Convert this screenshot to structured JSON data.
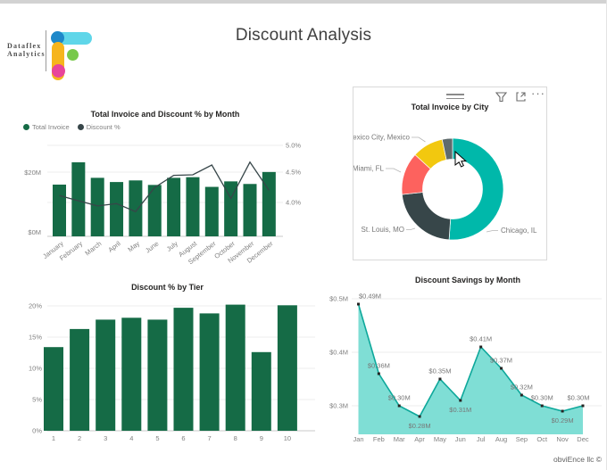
{
  "page": {
    "title": "Discount Analysis",
    "attribution": "obviEnce llc ©"
  },
  "logo": {
    "line1": "Dataflex",
    "line2": "Analytics",
    "colors": {
      "blue": "#1E88C9",
      "cyan": "#5FD6E9",
      "yellow": "#F6B51D",
      "green": "#78C94B",
      "pink": "#E8459B"
    }
  },
  "visual_header": {
    "icons": [
      "drag-handle",
      "filter",
      "focus-mode",
      "more-options"
    ],
    "more_glyph": "···"
  },
  "colors": {
    "green": "#156B46",
    "dark": "#374649",
    "area_fill": "#7FDED5",
    "area_line": "#0EA89B",
    "marker": "#252423",
    "axis_text": "#808080",
    "grid": "#ececec",
    "axis_line": "#c9c9c9",
    "label_text": "#777777"
  },
  "chart_data": [
    {
      "id": "invoice-discount-by-month",
      "type": "bar+line",
      "title": "Total Invoice and Discount % by Month",
      "legend": [
        {
          "label": "Total Invoice",
          "color": "#156B46"
        },
        {
          "label": "Discount %",
          "color": "#374649"
        }
      ],
      "categories": [
        "January",
        "February",
        "March",
        "April",
        "May",
        "June",
        "July",
        "August",
        "September",
        "October",
        "November",
        "December"
      ],
      "series": [
        {
          "name": "Total Invoice",
          "type": "bar",
          "unit": "$M",
          "values": [
            16.0,
            22.9,
            18.1,
            16.8,
            17.3,
            15.9,
            18.1,
            18.3,
            15.3,
            17.0,
            16.2,
            19.9
          ]
        },
        {
          "name": "Discount %",
          "type": "line",
          "unit": "%",
          "values": [
            4.12,
            4.03,
            3.94,
            3.98,
            3.84,
            4.26,
            4.47,
            4.48,
            4.65,
            4.07,
            4.7,
            4.21
          ]
        }
      ],
      "y_left": {
        "ticks": [
          "$0M",
          "$20M"
        ],
        "range": [
          0,
          20
        ]
      },
      "y_right": {
        "ticks": [
          "4.0%",
          "4.5%",
          "5.0%"
        ],
        "range": [
          4.0,
          5.0
        ]
      },
      "grid": true
    },
    {
      "id": "invoice-by-city",
      "type": "donut",
      "title": "Total Invoice by City",
      "slices": [
        {
          "label": "Chicago, IL",
          "pct": 51.1,
          "color": "#00B8AA"
        },
        {
          "label": "St. Louis, MO",
          "pct": 22.2,
          "color": "#374649"
        },
        {
          "label": "Miami, FL",
          "pct": 13.5,
          "color": "#FD625E"
        },
        {
          "label": "Mexico City, Mexico",
          "pct": 9.9,
          "color": "#F2C80F"
        },
        {
          "label": "",
          "pct": 3.3,
          "color": "#5F6B6D"
        }
      ]
    },
    {
      "id": "discount-by-tier",
      "type": "bar",
      "title": "Discount % by Tier",
      "categories": [
        "1",
        "2",
        "3",
        "4",
        "5",
        "6",
        "7",
        "8",
        "9",
        "10"
      ],
      "values": [
        13.4,
        16.3,
        17.8,
        18.1,
        17.8,
        19.7,
        18.8,
        20.2,
        12.6,
        20.1
      ],
      "ylabel_ticks": [
        "0%",
        "5%",
        "10%",
        "15%",
        "20%"
      ],
      "ylim": [
        0,
        20
      ],
      "grid": true
    },
    {
      "id": "discount-savings-by-month",
      "type": "area",
      "title": "Discount Savings by Month",
      "categories": [
        "Jan",
        "Feb",
        "Mar",
        "Apr",
        "May",
        "Jun",
        "Jul",
        "Aug",
        "Sep",
        "Oct",
        "Nov",
        "Dec"
      ],
      "values": [
        0.49,
        0.36,
        0.3,
        0.28,
        0.35,
        0.31,
        0.41,
        0.37,
        0.32,
        0.3,
        0.29,
        0.3
      ],
      "point_labels": [
        "$0.49M",
        "$0.36M",
        "$0.30M",
        "$0.28M",
        "$0.35M",
        "$0.31M",
        "$0.41M",
        "$0.37M",
        "$0.32M",
        "$0.30M",
        "$0.29M",
        "$0.30M"
      ],
      "label_side": [
        "above",
        "above",
        "above",
        "below",
        "above",
        "below",
        "above",
        "above",
        "above",
        "above",
        "below",
        "above"
      ],
      "y_ticks": [
        "$0.3M",
        "$0.4M",
        "$0.5M"
      ],
      "ylim": [
        0.25,
        0.52
      ],
      "grid": true
    }
  ]
}
